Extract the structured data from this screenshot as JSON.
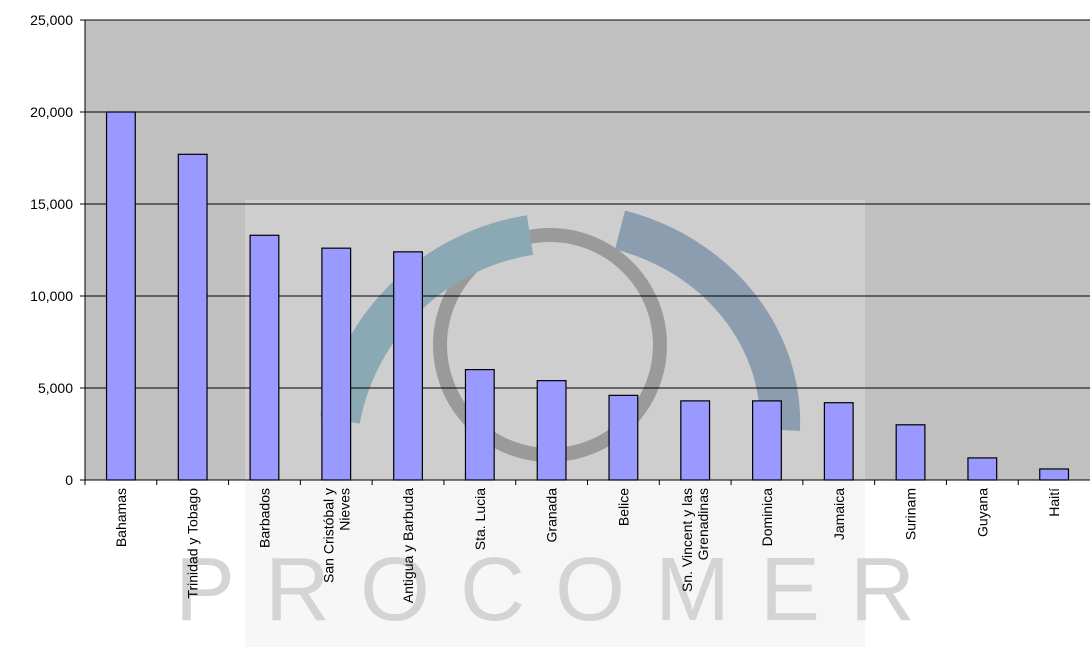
{
  "chart_data": {
    "type": "bar",
    "categories": [
      "Bahamas",
      "Trinidad y Tobago",
      "Barbados",
      "San Cristóbal y Nieves",
      "Antigua y Barbuda",
      "Sta. Lucia",
      "Granada",
      "Belice",
      "Sn. Vincent y las Grenadinas",
      "Dominica",
      "Jamaica",
      "Surinam",
      "Guyana",
      "Haití"
    ],
    "values": [
      20000,
      17700,
      13300,
      12600,
      12400,
      6000,
      5400,
      4600,
      4300,
      4300,
      4200,
      3000,
      1200,
      600
    ],
    "color": "#9999ff",
    "ylim": [
      0,
      25000
    ],
    "yticks": [
      0,
      {
        "value": 5000,
        "label": "5,000"
      },
      {
        "value": 10000,
        "label": "10,000"
      },
      {
        "value": 15000,
        "label": "15,000"
      },
      {
        "value": 20000,
        "label": "20,000"
      },
      {
        "value": 25000,
        "label": "25,000"
      }
    ],
    "grid": true,
    "watermark": "PROCOMER"
  }
}
